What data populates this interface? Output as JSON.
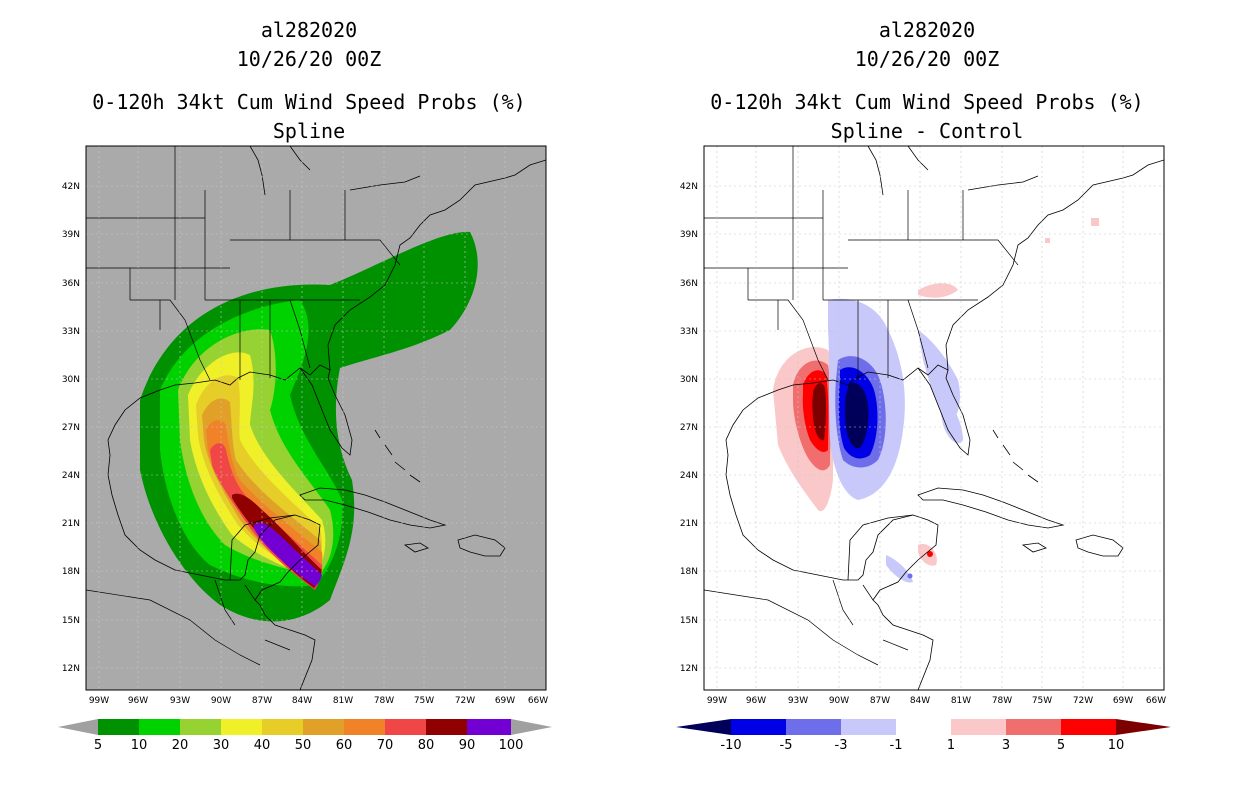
{
  "left_panel": {
    "header": {
      "storm_id": "al282020",
      "date": "10/26/20 00Z"
    },
    "title": "0-120h 34kt Cum Wind Speed Probs (%)",
    "subtitle": "Spline",
    "lat_labels": [
      "42N",
      "39N",
      "36N",
      "33N",
      "30N",
      "27N",
      "24N",
      "21N",
      "18N",
      "15N",
      "12N"
    ],
    "lon_labels": [
      "99W",
      "96W",
      "93W",
      "90W",
      "87W",
      "84W",
      "81W",
      "78W",
      "75W",
      "72W",
      "69W",
      "66W"
    ],
    "colorbar": {
      "labels": [
        "5",
        "10",
        "20",
        "30",
        "40",
        "50",
        "60",
        "70",
        "80",
        "90",
        "100"
      ],
      "colors": [
        "#009100",
        "#00d200",
        "#96d232",
        "#f0f028",
        "#e6cd28",
        "#e1a028",
        "#f08228",
        "#f04646",
        "#910000",
        "#7300d2"
      ],
      "below_color": "#a0a0a0",
      "above_color": "#a0a0a0"
    },
    "map_background": "#aaaaaa"
  },
  "right_panel": {
    "header": {
      "storm_id": "al282020",
      "date": "10/26/20 00Z"
    },
    "title": "0-120h 34kt Cum Wind Speed Probs (%)",
    "subtitle": "Spline - Control",
    "lat_labels": [
      "42N",
      "39N",
      "36N",
      "33N",
      "30N",
      "27N",
      "24N",
      "21N",
      "18N",
      "15N",
      "12N"
    ],
    "lon_labels": [
      "99W",
      "96W",
      "93W",
      "90W",
      "87W",
      "84W",
      "81W",
      "78W",
      "75W",
      "72W",
      "69W",
      "66W"
    ],
    "colorbar": {
      "labels": [
        "-10",
        "-5",
        "-3",
        "-1",
        "1",
        "3",
        "5",
        "10"
      ],
      "colors": [
        "#0000e6",
        "#6e6eeb",
        "#c8c8fa",
        "#ffffff",
        "#fac8c8",
        "#f06e6e",
        "#ff0000"
      ],
      "below_color": "#00005a",
      "above_color": "#7d0000"
    },
    "map_background": "#ffffff"
  }
}
